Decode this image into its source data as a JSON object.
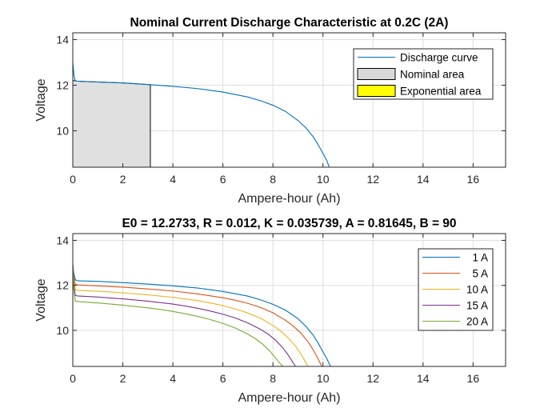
{
  "chart_data": [
    {
      "type": "line",
      "title": "Nominal Current Discharge Characteristic at 0.2C (2A)",
      "xlabel": "Ampere-hour (Ah)",
      "ylabel": "Voltage",
      "xlim": [
        0,
        17.3
      ],
      "ylim": [
        8.4,
        14.3
      ],
      "xticks": [
        0,
        2,
        4,
        6,
        8,
        10,
        12,
        14,
        16
      ],
      "yticks": [
        10,
        12,
        14
      ],
      "grid": true,
      "legend_position": "top-right",
      "legend": [
        {
          "label": "Discharge curve",
          "kind": "line",
          "color": "#0072bd"
        },
        {
          "label": "Nominal area",
          "kind": "patch",
          "color": "#d9d9d9"
        },
        {
          "label": "Exponential area",
          "kind": "patch",
          "color": "#ffff00"
        }
      ],
      "nominal_area": {
        "x_start": 0,
        "x_end": 3.1,
        "fill": "#e0e0e0"
      },
      "series": [
        {
          "color": "#0072bd",
          "x": [
            0,
            0.02,
            0.05,
            0.1,
            0.15,
            0.5,
            1,
            2,
            3,
            4,
            5,
            6,
            7,
            7.5,
            8,
            8.5,
            9,
            9.3,
            9.6,
            9.8,
            10,
            10.15,
            10.25
          ],
          "y": [
            13.0,
            12.75,
            12.4,
            12.2,
            12.18,
            12.16,
            12.14,
            12.1,
            12.03,
            11.95,
            11.85,
            11.7,
            11.48,
            11.32,
            11.12,
            10.85,
            10.45,
            10.15,
            9.75,
            9.4,
            9.0,
            8.7,
            8.4
          ]
        }
      ]
    },
    {
      "type": "line",
      "title": "E0 = 12.2733, R = 0.012, K = 0.035739, A = 0.81645, B = 90",
      "xlabel": "Ampere-hour (Ah)",
      "ylabel": "Voltage",
      "xlim": [
        0,
        17.3
      ],
      "ylim": [
        8.4,
        14.3
      ],
      "xticks": [
        0,
        2,
        4,
        6,
        8,
        10,
        12,
        14,
        16
      ],
      "yticks": [
        10,
        12,
        14
      ],
      "grid": true,
      "legend_position": "top-right",
      "legend": [
        {
          "label": "1 A",
          "kind": "line",
          "color": "#0072bd"
        },
        {
          "label": "5 A",
          "kind": "line",
          "color": "#d95319"
        },
        {
          "label": "10 A",
          "kind": "line",
          "color": "#edb120"
        },
        {
          "label": "15 A",
          "kind": "line",
          "color": "#7e2f8e"
        },
        {
          "label": "20 A",
          "kind": "line",
          "color": "#77ac30"
        }
      ],
      "series": [
        {
          "name": "1 A",
          "color": "#0072bd",
          "x": [
            0,
            0.03,
            0.1,
            0.2,
            1,
            2,
            3,
            4,
            5,
            6,
            7,
            7.5,
            8,
            8.5,
            9,
            9.3,
            9.6,
            9.8,
            10,
            10.15,
            10.3
          ],
          "y": [
            12.95,
            12.6,
            12.25,
            12.2,
            12.18,
            12.12,
            12.06,
            11.98,
            11.88,
            11.73,
            11.52,
            11.36,
            11.16,
            10.9,
            10.52,
            10.2,
            9.8,
            9.45,
            9.05,
            8.75,
            8.4
          ]
        },
        {
          "name": "5 A",
          "color": "#d95319",
          "x": [
            0,
            0.03,
            0.1,
            0.2,
            1,
            2,
            3,
            4,
            5,
            6,
            6.5,
            7,
            7.5,
            8,
            8.5,
            8.8,
            9.1,
            9.4,
            9.6,
            9.8,
            9.95
          ],
          "y": [
            12.9,
            12.45,
            12.05,
            12.02,
            11.98,
            11.92,
            11.84,
            11.75,
            11.62,
            11.45,
            11.34,
            11.2,
            11.02,
            10.78,
            10.45,
            10.2,
            9.9,
            9.5,
            9.15,
            8.75,
            8.4
          ]
        },
        {
          "name": "10 A",
          "color": "#edb120",
          "x": [
            0,
            0.03,
            0.1,
            0.2,
            1,
            2,
            3,
            4,
            5,
            5.5,
            6,
            6.5,
            7,
            7.5,
            8,
            8.3,
            8.6,
            8.9,
            9.1,
            9.25,
            9.4
          ],
          "y": [
            12.85,
            12.3,
            11.8,
            11.78,
            11.74,
            11.67,
            11.58,
            11.47,
            11.32,
            11.22,
            11.1,
            10.95,
            10.77,
            10.54,
            10.22,
            9.98,
            9.68,
            9.3,
            8.98,
            8.7,
            8.4
          ]
        },
        {
          "name": "15 A",
          "color": "#7e2f8e",
          "x": [
            0,
            0.03,
            0.1,
            0.2,
            1,
            2,
            3,
            4,
            4.5,
            5,
            5.5,
            6,
            6.5,
            7,
            7.5,
            7.8,
            8.1,
            8.4,
            8.6,
            8.75,
            8.9
          ],
          "y": [
            12.8,
            12.1,
            11.55,
            11.53,
            11.48,
            11.4,
            11.3,
            11.17,
            11.08,
            10.98,
            10.86,
            10.72,
            10.55,
            10.33,
            10.05,
            9.84,
            9.57,
            9.22,
            8.92,
            8.66,
            8.4
          ]
        },
        {
          "name": "20 A",
          "color": "#77ac30",
          "x": [
            0,
            0.03,
            0.1,
            0.2,
            1,
            2,
            3,
            3.5,
            4,
            4.5,
            5,
            5.5,
            6,
            6.5,
            7,
            7.3,
            7.6,
            7.9,
            8.1,
            8.25,
            8.4
          ],
          "y": [
            12.75,
            11.9,
            11.3,
            11.28,
            11.22,
            11.12,
            11.0,
            10.93,
            10.84,
            10.74,
            10.62,
            10.48,
            10.31,
            10.1,
            9.83,
            9.63,
            9.38,
            9.05,
            8.78,
            8.58,
            8.4
          ]
        }
      ]
    }
  ]
}
